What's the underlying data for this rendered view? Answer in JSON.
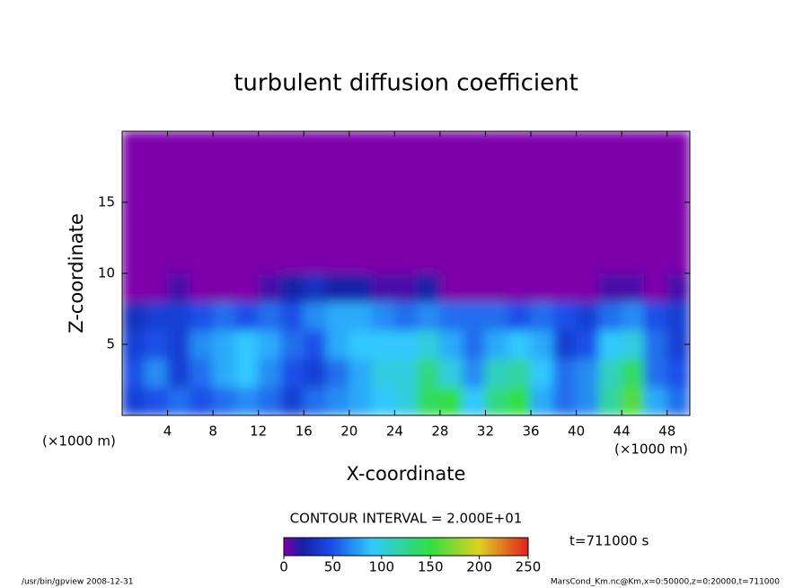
{
  "chart_data": {
    "type": "heatmap",
    "title": "turbulent diffusion coefficient",
    "x_label": "X-coordinate",
    "y_label": "Z-coordinate",
    "x_unit": "(×1000 m)",
    "x_unit_right": "(×1000 m)",
    "contour_interval": "CONTOUR INTERVAL = 2.000E+01",
    "time_label": "t=711000 s",
    "footer_left": "/usr/bin/gpview   2008-12-31",
    "footer_right": "MarsCond_Km.nc@Km,x=0:50000,z=0:20000,t=711000",
    "xlim": [
      0,
      50
    ],
    "ylim": [
      0,
      20
    ],
    "xticks": [
      4,
      8,
      12,
      16,
      20,
      24,
      28,
      32,
      36,
      40,
      44,
      48
    ],
    "yticks": [
      5,
      10,
      15
    ],
    "x": [
      1,
      3,
      5,
      7,
      9,
      11,
      13,
      15,
      17,
      19,
      21,
      23,
      25,
      27,
      29,
      31,
      33,
      35,
      37,
      39,
      41,
      43,
      45,
      47,
      49
    ],
    "z": [
      1,
      3,
      5,
      7,
      9,
      11,
      13,
      15,
      17,
      19
    ],
    "values": [
      [
        40,
        50,
        60,
        50,
        60,
        70,
        60,
        40,
        60,
        70,
        80,
        90,
        100,
        140,
        150,
        90,
        130,
        150,
        80,
        60,
        70,
        120,
        160,
        80,
        60
      ],
      [
        50,
        70,
        40,
        60,
        80,
        90,
        70,
        50,
        40,
        60,
        80,
        100,
        100,
        130,
        100,
        70,
        110,
        120,
        90,
        60,
        70,
        110,
        140,
        60,
        50
      ],
      [
        40,
        50,
        40,
        70,
        80,
        90,
        80,
        60,
        50,
        80,
        90,
        90,
        90,
        100,
        80,
        60,
        80,
        90,
        80,
        40,
        50,
        90,
        100,
        60,
        40
      ],
      [
        30,
        40,
        40,
        50,
        60,
        50,
        60,
        50,
        70,
        80,
        80,
        70,
        60,
        70,
        60,
        60,
        60,
        50,
        60,
        50,
        40,
        60,
        70,
        50,
        40
      ],
      [
        0,
        0,
        10,
        0,
        0,
        0,
        10,
        20,
        30,
        20,
        20,
        10,
        10,
        20,
        0,
        0,
        0,
        0,
        0,
        0,
        0,
        10,
        10,
        0,
        10
      ],
      [
        0,
        0,
        0,
        0,
        0,
        0,
        0,
        0,
        0,
        0,
        0,
        0,
        0,
        0,
        0,
        0,
        0,
        0,
        0,
        0,
        0,
        0,
        0,
        0,
        0
      ],
      [
        0,
        0,
        0,
        0,
        0,
        0,
        0,
        0,
        0,
        0,
        0,
        0,
        0,
        0,
        0,
        0,
        0,
        0,
        0,
        0,
        0,
        0,
        0,
        0,
        0
      ],
      [
        0,
        0,
        0,
        0,
        0,
        0,
        0,
        0,
        0,
        0,
        0,
        0,
        0,
        0,
        0,
        0,
        0,
        0,
        0,
        0,
        0,
        0,
        0,
        0,
        0
      ],
      [
        0,
        0,
        0,
        0,
        0,
        0,
        0,
        0,
        0,
        0,
        0,
        0,
        0,
        0,
        0,
        0,
        0,
        0,
        0,
        0,
        0,
        0,
        0,
        0,
        0
      ],
      [
        0,
        0,
        0,
        0,
        0,
        0,
        0,
        0,
        0,
        0,
        0,
        0,
        0,
        0,
        0,
        0,
        0,
        0,
        0,
        0,
        0,
        0,
        0,
        0,
        0
      ]
    ],
    "colorbar_ticks": [
      0,
      50,
      100,
      150,
      200,
      250
    ],
    "colorscale": [
      [
        0,
        "#7d00aa"
      ],
      [
        20,
        "#1420a8"
      ],
      [
        50,
        "#1a50e8"
      ],
      [
        90,
        "#30c8ff"
      ],
      [
        150,
        "#30e040"
      ],
      [
        200,
        "#e0d020"
      ],
      [
        250,
        "#e02020"
      ]
    ]
  }
}
